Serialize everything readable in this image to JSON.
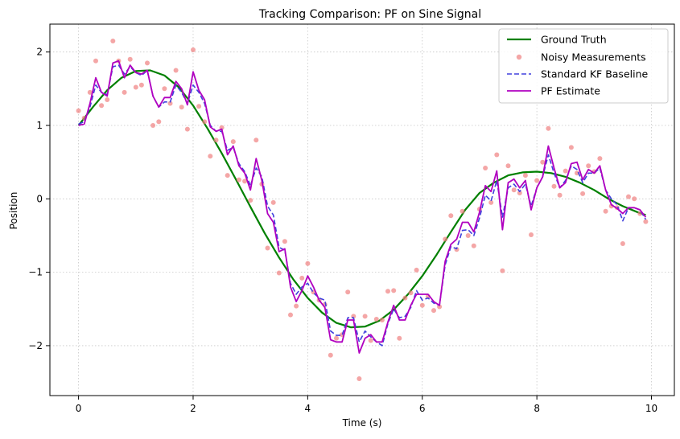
{
  "chart_data": {
    "type": "line",
    "title": "Tracking Comparison: PF on Sine Signal",
    "xlabel": "Time (s)",
    "ylabel": "Position",
    "xlim": [
      -0.5,
      10.4
    ],
    "ylim": [
      -2.68,
      2.38
    ],
    "xticks": [
      0,
      2,
      4,
      6,
      8,
      10
    ],
    "yticks": [
      -2,
      -1,
      0,
      1,
      2
    ],
    "xtick_labels": [
      "0",
      "2",
      "4",
      "6",
      "8",
      "10"
    ],
    "ytick_labels": [
      "−2",
      "−1",
      "0",
      "1",
      "2"
    ],
    "grid": true,
    "legend_position": "top-right",
    "colors": {
      "truth": "#008000",
      "measurements": "#f08080",
      "kf": "#4040dd",
      "pf": "#b000c0"
    },
    "series": [
      {
        "name": "Ground Truth",
        "kind": "line",
        "x": [
          0,
          0.25,
          0.5,
          0.75,
          1,
          1.25,
          1.5,
          1.75,
          2,
          2.25,
          2.5,
          2.75,
          3,
          3.25,
          3.5,
          3.75,
          4,
          4.25,
          4.5,
          4.75,
          5,
          5.25,
          5.5,
          5.75,
          6,
          6.25,
          6.5,
          6.75,
          7,
          7.25,
          7.5,
          7.75,
          8,
          8.25,
          8.5,
          8.75,
          9,
          9.25,
          9.5,
          9.75,
          9.9
        ],
        "y": [
          1.0,
          1.25,
          1.48,
          1.65,
          1.74,
          1.75,
          1.68,
          1.52,
          1.27,
          0.96,
          0.62,
          0.26,
          -0.11,
          -0.47,
          -0.8,
          -1.1,
          -1.35,
          -1.55,
          -1.69,
          -1.75,
          -1.74,
          -1.66,
          -1.51,
          -1.3,
          -1.05,
          -0.76,
          -0.45,
          -0.15,
          0.08,
          0.22,
          0.32,
          0.36,
          0.37,
          0.35,
          0.3,
          0.22,
          0.12,
          0.0,
          -0.1,
          -0.18,
          -0.22
        ]
      },
      {
        "name": "Noisy Measurements",
        "kind": "scatter",
        "x": [
          0.0,
          0.1,
          0.2,
          0.3,
          0.4,
          0.5,
          0.6,
          0.7,
          0.8,
          0.9,
          1.0,
          1.1,
          1.2,
          1.3,
          1.4,
          1.5,
          1.6,
          1.7,
          1.8,
          1.9,
          2.0,
          2.1,
          2.2,
          2.3,
          2.4,
          2.5,
          2.6,
          2.7,
          2.8,
          2.9,
          3.0,
          3.1,
          3.2,
          3.3,
          3.4,
          3.5,
          3.6,
          3.7,
          3.8,
          3.9,
          4.0,
          4.1,
          4.2,
          4.3,
          4.4,
          4.5,
          4.6,
          4.7,
          4.8,
          4.9,
          5.0,
          5.1,
          5.2,
          5.3,
          5.4,
          5.5,
          5.6,
          5.7,
          5.8,
          5.9,
          6.0,
          6.1,
          6.2,
          6.3,
          6.4,
          6.5,
          6.6,
          6.7,
          6.8,
          6.9,
          7.0,
          7.1,
          7.2,
          7.3,
          7.4,
          7.5,
          7.6,
          7.7,
          7.8,
          7.9,
          8.0,
          8.1,
          8.2,
          8.3,
          8.4,
          8.5,
          8.6,
          8.7,
          8.8,
          8.9,
          9.0,
          9.1,
          9.2,
          9.3,
          9.4,
          9.5,
          9.6,
          9.7,
          9.8,
          9.9
        ],
        "y": [
          1.2,
          1.1,
          1.45,
          1.88,
          1.27,
          1.35,
          2.15,
          1.88,
          1.45,
          1.9,
          1.52,
          1.55,
          1.85,
          1.0,
          1.05,
          1.5,
          1.3,
          1.75,
          1.25,
          0.95,
          2.03,
          1.26,
          1.05,
          0.58,
          0.8,
          0.97,
          0.32,
          0.78,
          0.26,
          0.24,
          -0.02,
          0.8,
          0.2,
          -0.67,
          -0.05,
          -1.01,
          -0.58,
          -1.58,
          -1.46,
          -1.08,
          -0.88,
          -1.27,
          -1.38,
          -1.44,
          -2.13,
          -1.9,
          -1.85,
          -1.27,
          -1.6,
          -2.45,
          -1.6,
          -1.93,
          -1.64,
          -1.65,
          -1.26,
          -1.25,
          -1.9,
          -1.35,
          -1.28,
          -0.97,
          -1.45,
          -1.33,
          -1.52,
          -1.47,
          -0.55,
          -0.23,
          -0.69,
          -0.17,
          -0.5,
          -0.64,
          -0.14,
          0.42,
          -0.05,
          0.6,
          -0.98,
          0.45,
          0.12,
          0.08,
          0.32,
          -0.49,
          0.25,
          0.5,
          0.96,
          0.17,
          0.05,
          0.38,
          0.7,
          0.35,
          0.07,
          0.45,
          0.37,
          0.55,
          -0.17,
          -0.1,
          -0.12,
          -0.61,
          0.03,
          0.0,
          -0.2,
          -0.31
        ]
      },
      {
        "name": "Standard KF Baseline",
        "kind": "line",
        "dashed": true,
        "x": [
          0.0,
          0.1,
          0.2,
          0.3,
          0.4,
          0.5,
          0.6,
          0.7,
          0.8,
          0.9,
          1.0,
          1.1,
          1.2,
          1.3,
          1.4,
          1.5,
          1.6,
          1.7,
          1.8,
          1.9,
          2.0,
          2.1,
          2.2,
          2.3,
          2.4,
          2.5,
          2.6,
          2.7,
          2.8,
          2.9,
          3.0,
          3.1,
          3.2,
          3.3,
          3.4,
          3.5,
          3.6,
          3.7,
          3.8,
          3.9,
          4.0,
          4.1,
          4.2,
          4.3,
          4.4,
          4.5,
          4.6,
          4.7,
          4.8,
          4.9,
          5.0,
          5.1,
          5.2,
          5.3,
          5.4,
          5.5,
          5.6,
          5.7,
          5.8,
          5.9,
          6.0,
          6.1,
          6.2,
          6.3,
          6.4,
          6.5,
          6.6,
          6.7,
          6.8,
          6.9,
          7.0,
          7.1,
          7.2,
          7.3,
          7.4,
          7.5,
          7.6,
          7.7,
          7.8,
          7.9,
          8.0,
          8.1,
          8.2,
          8.3,
          8.4,
          8.5,
          8.6,
          8.7,
          8.8,
          8.9,
          9.0,
          9.1,
          9.2,
          9.3,
          9.4,
          9.5,
          9.6,
          9.7,
          9.8,
          9.9
        ],
        "y": [
          1.02,
          1.05,
          1.25,
          1.55,
          1.45,
          1.42,
          1.8,
          1.82,
          1.7,
          1.8,
          1.72,
          1.68,
          1.75,
          1.4,
          1.25,
          1.32,
          1.32,
          1.55,
          1.45,
          1.3,
          1.55,
          1.45,
          1.3,
          1.0,
          0.92,
          0.92,
          0.66,
          0.7,
          0.48,
          0.37,
          0.18,
          0.42,
          0.3,
          -0.1,
          -0.22,
          -0.66,
          -0.7,
          -1.15,
          -1.3,
          -1.2,
          -1.15,
          -1.28,
          -1.35,
          -1.38,
          -1.8,
          -1.86,
          -1.86,
          -1.62,
          -1.62,
          -1.95,
          -1.8,
          -1.88,
          -1.95,
          -2.0,
          -1.7,
          -1.5,
          -1.62,
          -1.6,
          -1.48,
          -1.25,
          -1.38,
          -1.35,
          -1.42,
          -1.45,
          -0.9,
          -0.65,
          -0.68,
          -0.43,
          -0.42,
          -0.5,
          -0.26,
          0.05,
          -0.03,
          0.25,
          -0.25,
          0.15,
          0.2,
          0.1,
          0.2,
          -0.1,
          0.15,
          0.3,
          0.6,
          0.35,
          0.15,
          0.25,
          0.45,
          0.4,
          0.22,
          0.35,
          0.35,
          0.42,
          0.12,
          0.0,
          -0.08,
          -0.3,
          -0.12,
          -0.12,
          -0.15,
          -0.28
        ]
      },
      {
        "name": "PF Estimate",
        "kind": "line",
        "x": [
          0.0,
          0.1,
          0.2,
          0.3,
          0.4,
          0.5,
          0.6,
          0.7,
          0.8,
          0.9,
          1.0,
          1.1,
          1.2,
          1.3,
          1.4,
          1.5,
          1.6,
          1.7,
          1.8,
          1.9,
          2.0,
          2.1,
          2.2,
          2.3,
          2.4,
          2.5,
          2.6,
          2.7,
          2.8,
          2.9,
          3.0,
          3.1,
          3.2,
          3.3,
          3.4,
          3.5,
          3.6,
          3.7,
          3.8,
          3.9,
          4.0,
          4.1,
          4.2,
          4.3,
          4.4,
          4.5,
          4.6,
          4.7,
          4.8,
          4.9,
          5.0,
          5.1,
          5.2,
          5.3,
          5.4,
          5.5,
          5.6,
          5.7,
          5.8,
          5.9,
          6.0,
          6.1,
          6.2,
          6.3,
          6.4,
          6.5,
          6.6,
          6.7,
          6.8,
          6.9,
          7.0,
          7.1,
          7.2,
          7.3,
          7.4,
          7.5,
          7.6,
          7.7,
          7.8,
          7.9,
          8.0,
          8.1,
          8.2,
          8.3,
          8.4,
          8.5,
          8.6,
          8.7,
          8.8,
          8.9,
          9.0,
          9.1,
          9.2,
          9.3,
          9.4,
          9.5,
          9.6,
          9.7,
          9.8,
          9.9
        ],
        "y": [
          1.0,
          1.02,
          1.3,
          1.65,
          1.45,
          1.4,
          1.85,
          1.88,
          1.65,
          1.82,
          1.72,
          1.7,
          1.75,
          1.4,
          1.25,
          1.38,
          1.38,
          1.6,
          1.5,
          1.28,
          1.73,
          1.48,
          1.35,
          0.98,
          0.92,
          0.95,
          0.6,
          0.72,
          0.45,
          0.35,
          0.12,
          0.55,
          0.25,
          -0.2,
          -0.32,
          -0.72,
          -0.68,
          -1.2,
          -1.4,
          -1.25,
          -1.05,
          -1.2,
          -1.38,
          -1.48,
          -1.92,
          -1.95,
          -1.95,
          -1.65,
          -1.65,
          -2.1,
          -1.9,
          -1.85,
          -1.95,
          -1.95,
          -1.68,
          -1.45,
          -1.65,
          -1.65,
          -1.45,
          -1.3,
          -1.3,
          -1.3,
          -1.4,
          -1.45,
          -0.85,
          -0.62,
          -0.55,
          -0.32,
          -0.32,
          -0.45,
          -0.18,
          0.18,
          0.1,
          0.38,
          -0.42,
          0.22,
          0.27,
          0.15,
          0.25,
          -0.15,
          0.15,
          0.3,
          0.72,
          0.42,
          0.15,
          0.22,
          0.48,
          0.5,
          0.26,
          0.4,
          0.35,
          0.45,
          0.12,
          -0.08,
          -0.13,
          -0.2,
          -0.12,
          -0.12,
          -0.15,
          -0.25
        ]
      }
    ]
  }
}
